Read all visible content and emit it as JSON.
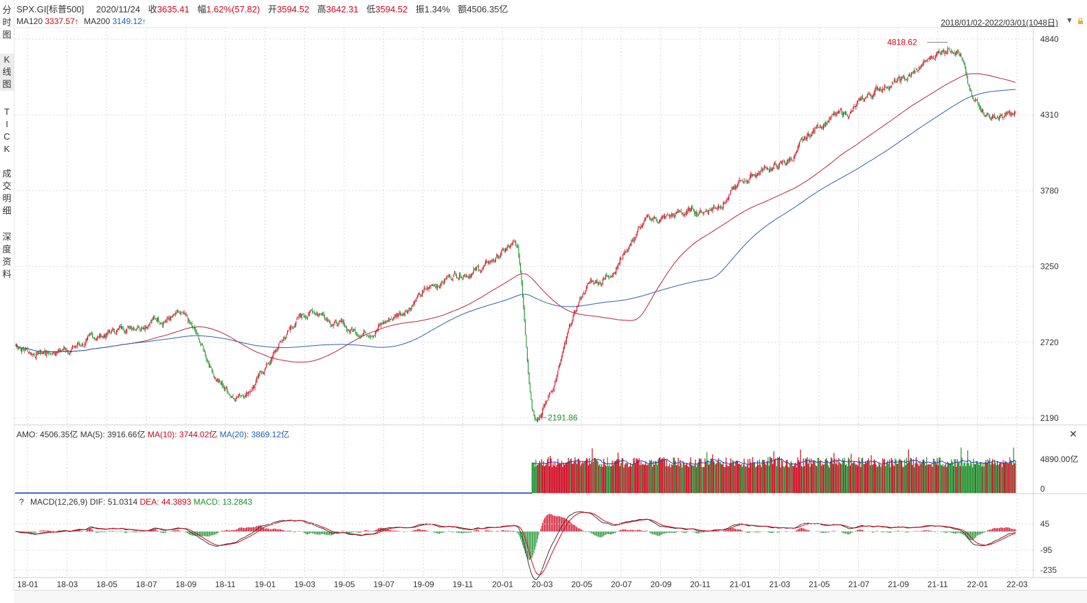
{
  "sidebar": {
    "tabs": [
      {
        "label": "分时图",
        "chars": [
          "分",
          "时",
          "图"
        ],
        "active": false
      },
      {
        "label": "K线图",
        "chars": [
          "K",
          "线",
          "图"
        ],
        "active": true
      },
      {
        "label": "TICK",
        "chars": [
          "T",
          "I",
          "C",
          "K"
        ],
        "active": false
      },
      {
        "label": "成交明细",
        "chars": [
          "成",
          "交",
          "明",
          "细"
        ],
        "active": false
      },
      {
        "label": "深度资料",
        "chars": [
          "深",
          "度",
          "资",
          "料"
        ],
        "active": false
      }
    ]
  },
  "header": {
    "symbol": "SPX.GI[标普500]",
    "date": "2020/11/24",
    "close_label": "收",
    "close": "3635.41",
    "change_label": "幅",
    "change": "1.62%(57.82)",
    "open_label": "开",
    "open": "3594.52",
    "high_label": "高",
    "high": "3642.31",
    "low_label": "低",
    "low": "3594.52",
    "amplitude_label": "振",
    "amplitude": "1.34%",
    "amount_label": "额",
    "amount": "4506.35亿"
  },
  "main_indicators": {
    "ma120_label": "MA120",
    "ma120": "3337.57↑",
    "ma200_label": "MA200",
    "ma200": "3149.12↑"
  },
  "range_selector": "2018/01/02-2022/03/01(1048日)",
  "price_axis": [
    "4840",
    "4310",
    "3780",
    "3250",
    "2720",
    "2190"
  ],
  "annotations": {
    "high": "4818.62",
    "low": "2191.86"
  },
  "volume_panel": {
    "amo_label": "AMO:",
    "amo": "4506.35亿",
    "ma5_label": "MA(5):",
    "ma5": "3916.66亿",
    "ma10_label": "MA(10):",
    "ma10": "3744.02亿",
    "ma20_label": "MA(20):",
    "ma20": "3869.12亿",
    "axis": [
      "4890.00亿",
      "0"
    ]
  },
  "macd_panel": {
    "help": "?",
    "name": "MACD(12,26,9)",
    "dif_label": "DIF:",
    "dif": "51.0314",
    "dea_label": "DEA:",
    "dea": "44.3893",
    "macd_label": "MACD:",
    "macd": "13.2843",
    "axis": [
      "45",
      "-95",
      "-235"
    ]
  },
  "time_axis": [
    "18-01",
    "18-03",
    "18-05",
    "18-07",
    "18-09",
    "18-11",
    "19-01",
    "19-03",
    "19-05",
    "19-07",
    "19-09",
    "19-11",
    "20-01",
    "20-03",
    "20-05",
    "20-07",
    "20-09",
    "20-11",
    "21-01",
    "21-03",
    "21-05",
    "21-07",
    "21-09",
    "21-11",
    "22-01",
    "22-03"
  ],
  "colors": {
    "up": "#d0021b",
    "down": "#1a8f2a",
    "ma120": "#b0233a",
    "ma200": "#2b5fa8",
    "grid": "#d8d8d8",
    "vol_ma": "#1f3fbf"
  },
  "chart_data": {
    "type": "candlestick",
    "price_key_points": [
      {
        "date": "2018-01",
        "close": 2700
      },
      {
        "date": "2018-02",
        "close": 2650
      },
      {
        "date": "2018-09",
        "close": 2900
      },
      {
        "date": "2018-12",
        "close": 2360
      },
      {
        "date": "2019-04",
        "close": 2940
      },
      {
        "date": "2019-06",
        "close": 2800
      },
      {
        "date": "2019-12",
        "close": 3230
      },
      {
        "date": "2020-02",
        "close": 3380
      },
      {
        "date": "2020-03",
        "close": 2237
      },
      {
        "date": "2020-06",
        "close": 3150
      },
      {
        "date": "2020-09",
        "close": 3580
      },
      {
        "date": "2020-11",
        "close": 3635
      },
      {
        "date": "2021-03",
        "close": 3950
      },
      {
        "date": "2021-06",
        "close": 4300
      },
      {
        "date": "2021-09",
        "close": 4540
      },
      {
        "date": "2021-12",
        "close": 4800
      },
      {
        "date": "2022-01",
        "close": 4380
      },
      {
        "date": "2022-02",
        "close": 4300
      }
    ],
    "high_value": 4818.62,
    "low_value": 2191.86,
    "ylim": [
      2190,
      4840
    ]
  }
}
